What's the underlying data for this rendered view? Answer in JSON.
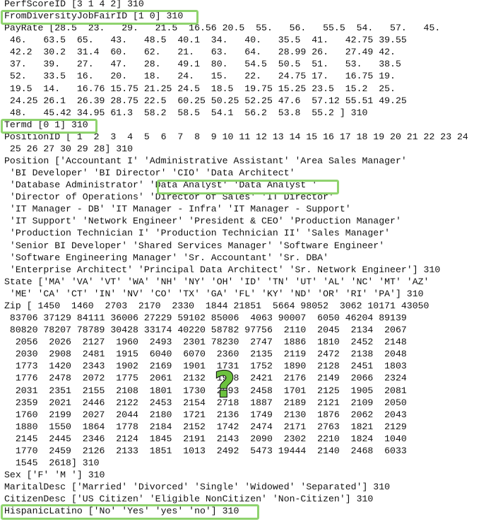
{
  "output_lines": [
    "PerfScoreID [3 1 4 2] 310",
    "FromDiversityJobFairID [1 0] 310",
    "PayRate [28.5  23.   29.   21.5  16.56 20.5  55.   56.   55.5  54.   57.   45.",
    " 46.   63.5  65.   43.   48.5  40.1  34.   40.   35.5  41.   42.75 39.55",
    " 42.2  30.2  31.4  60.   62.   21.   63.   64.   28.99 26.   27.49 42.",
    " 37.   39.   27.   47.   28.   49.1  80.   54.5  50.5  51.   53.   38.5",
    " 52.   33.5  16.   20.   18.   24.   15.   22.   24.75 17.   16.75 19.",
    " 19.5  14.   16.76 15.75 21.25 24.5  18.5  19.75 15.25 23.5  15.2  25.",
    " 24.25 26.1  26.39 28.75 22.5  60.25 50.25 52.25 47.6  57.12 55.51 49.25",
    " 48.   45.42 34.95 61.3  58.2  58.5  54.1  56.2  53.8  55.2 ] 310",
    "Termd [0 1] 310",
    "PositionID [ 1  2  3  4  5  6  7  8  9 10 11 12 13 14 15 16 17 18 19 20 21 22 23 24",
    " 25 26 27 30 29 28] 310",
    "Position ['Accountant I' 'Administrative Assistant' 'Area Sales Manager'",
    " 'BI Developer' 'BI Director' 'CIO' 'Data Architect'",
    " 'Database Administrator' 'Data Analyst' 'Data Analyst '",
    " 'Director of Operations' 'Director of Sales' 'IT Director'",
    " 'IT Manager - DB' 'IT Manager - Infra' 'IT Manager - Support'",
    " 'IT Support' 'Network Engineer' 'President & CEO' 'Production Manager'",
    " 'Production Technician I' 'Production Technician II' 'Sales Manager'",
    " 'Senior BI Developer' 'Shared Services Manager' 'Software Engineer'",
    " 'Software Engineering Manager' 'Sr. Accountant' 'Sr. DBA'",
    " 'Enterprise Architect' 'Principal Data Architect' 'Sr. Network Engineer'] 310",
    "State ['MA' 'VA' 'VT' 'WA' 'NH' 'NY' 'OH' 'ID' 'TN' 'UT' 'AL' 'NC' 'MT' 'AZ'",
    " 'ME' 'CA' 'CT' 'IN' 'NV' 'CO' 'TX' 'GA' 'FL' 'KY' 'ND' 'OR' 'RI' 'PA'] 310",
    "Zip [ 1450  1460  2703  2170  2330  1844 21851  5664 98052  3062 10171 43050",
    " 83706 37129 84111 36006 27229 59102 85006  4063 90007  6050 46204 89139",
    " 80820 78207 78789 30428 33174 40220 58782 97756  2110  2045  2134  2067",
    "  2056  2026  2127  1960  2493  2301 78230  2747  1886  1810  2452  2148",
    "  2030  2908  2481  1915  6040  6070  2360  2135  2119  2472  2138  2048",
    "  1773  1420  2343  1902  2169  1901  1731  1752  1890  2128  2451  1803",
    "  1776  2478  2072  1775  2061  2132  1938  2421  2176  2149  2066  2324",
    "  2031  2351  2155  2108  1801  1730  2093  2458  1701  2125  1905  2081",
    "  2359  2021  2446  2122  2453  2154  2718  1887  2189  2121  2109  2050",
    "  1760  2199  2027  2044  2180  1721  2136  1749  2130  1876  2062  2043",
    "  1880  1550  1864  1778  2184  2152  1742  2474  2171  2763  1821  2129",
    "  2145  2445  2346  2124  1845  2191  2143  2090  2302  2210  1824  1040",
    "  1770  2459  2126  2133  1851  1013  2492  5473 19444  2140  2468  6033",
    "  1545  2618] 310",
    "Sex ['F' 'M '] 310",
    "MaritalDesc ['Married' 'Divorced' 'Single' 'Widowed' 'Separated'] 310",
    "CitizenDesc ['US Citizen' 'Eligible NonCitizen' 'Non-Citizen'] 310",
    "HispanicLatino ['No' 'Yes' 'yes' 'no'] 310"
  ],
  "annotations": {
    "highlight_color": "#8fd36e",
    "question_mark_color": "#6cc23e",
    "question_mark_icon": "question-mark-icon"
  }
}
